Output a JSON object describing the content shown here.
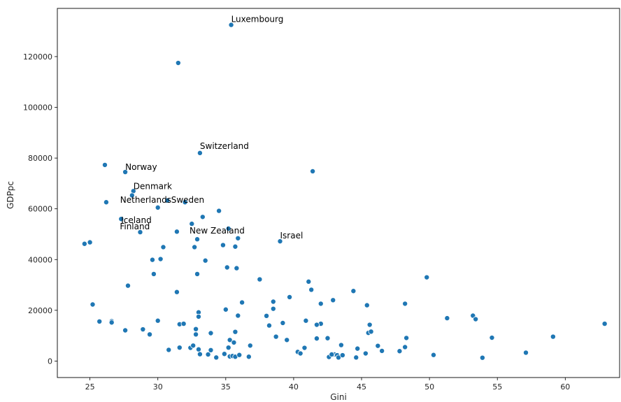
{
  "chart_data": {
    "type": "scatter",
    "title": "",
    "xlabel": "Gini",
    "ylabel": "GDPpc",
    "xlim": [
      22.6,
      64.0
    ],
    "ylim": [
      -6500,
      139000
    ],
    "xticks": [
      25,
      30,
      35,
      40,
      45,
      50,
      55,
      60
    ],
    "yticks": [
      0,
      20000,
      40000,
      60000,
      80000,
      100000,
      120000
    ],
    "grid": false,
    "legend": "none",
    "colors": {
      "points": "#1f77b4",
      "edge": "#ffffff",
      "axes": "#000000",
      "text": "#262626"
    },
    "annotations": [
      {
        "text": "Luxembourg",
        "x": 35.4,
        "y": 132500
      },
      {
        "text": "Switzerland",
        "x": 33.1,
        "y": 82000
      },
      {
        "text": "Norway",
        "x": 27.6,
        "y": 74500
      },
      {
        "text": "Denmark",
        "x": 28.2,
        "y": 67000
      },
      {
        "text": "Netherlands",
        "x": 28.1,
        "y": 62600
      },
      {
        "text": "Sweden",
        "x": 30.0,
        "y": 60500
      },
      {
        "text": "Iceland",
        "x": 27.3,
        "y": 56000
      },
      {
        "text": "Finland",
        "x": 27.2,
        "y": 56000
      },
      {
        "text": "New Zealand",
        "x": 32.9,
        "y": 48000
      },
      {
        "text": "Israel",
        "x": 39.0,
        "y": 47200
      }
    ],
    "points": [
      [
        35.4,
        132500
      ],
      [
        31.5,
        117500
      ],
      [
        33.1,
        82000
      ],
      [
        26.1,
        77300
      ],
      [
        27.6,
        74500
      ],
      [
        41.4,
        74800
      ],
      [
        28.2,
        67000
      ],
      [
        28.1,
        65300
      ],
      [
        26.2,
        62600
      ],
      [
        30.0,
        60500
      ],
      [
        30.7,
        63300
      ],
      [
        32.0,
        62600
      ],
      [
        34.5,
        59200
      ],
      [
        27.3,
        56000
      ],
      [
        33.3,
        56800
      ],
      [
        35.2,
        52200
      ],
      [
        32.5,
        54100
      ],
      [
        31.4,
        51000
      ],
      [
        28.7,
        50800
      ],
      [
        34.8,
        45700
      ],
      [
        35.9,
        48400
      ],
      [
        39.0,
        47200
      ],
      [
        32.9,
        48000
      ],
      [
        24.6,
        46200
      ],
      [
        25.0,
        46800
      ],
      [
        30.4,
        44900
      ],
      [
        32.7,
        44900
      ],
      [
        35.7,
        45100
      ],
      [
        29.6,
        39900
      ],
      [
        30.2,
        40200
      ],
      [
        33.5,
        39600
      ],
      [
        35.1,
        36900
      ],
      [
        35.8,
        36600
      ],
      [
        32.9,
        34300
      ],
      [
        29.7,
        34300
      ],
      [
        37.5,
        32200
      ],
      [
        41.1,
        31300
      ],
      [
        49.8,
        33000
      ],
      [
        27.8,
        29700
      ],
      [
        41.3,
        28100
      ],
      [
        44.4,
        27600
      ],
      [
        31.4,
        27200
      ],
      [
        39.7,
        25200
      ],
      [
        25.2,
        22300
      ],
      [
        42.9,
        24000
      ],
      [
        36.2,
        23100
      ],
      [
        38.5,
        23400
      ],
      [
        42.0,
        22600
      ],
      [
        45.4,
        22000
      ],
      [
        48.2,
        22600
      ],
      [
        38.5,
        20600
      ],
      [
        35.0,
        20300
      ],
      [
        33.0,
        19200
      ],
      [
        35.9,
        17900
      ],
      [
        33.0,
        17500
      ],
      [
        38.0,
        17800
      ],
      [
        51.3,
        16900
      ],
      [
        53.2,
        17900
      ],
      [
        53.4,
        16500
      ],
      [
        25.7,
        15600
      ],
      [
        26.6,
        15700
      ],
      [
        26.6,
        15200
      ],
      [
        30.0,
        15900
      ],
      [
        31.6,
        14500
      ],
      [
        31.9,
        14700
      ],
      [
        38.2,
        14000
      ],
      [
        39.2,
        15000
      ],
      [
        40.9,
        15900
      ],
      [
        42.0,
        14700
      ],
      [
        41.7,
        14300
      ],
      [
        45.6,
        14300
      ],
      [
        62.9,
        14700
      ],
      [
        27.6,
        12100
      ],
      [
        28.9,
        12500
      ],
      [
        32.8,
        12600
      ],
      [
        35.7,
        11500
      ],
      [
        33.9,
        11000
      ],
      [
        45.5,
        11100
      ],
      [
        45.7,
        11600
      ],
      [
        29.4,
        10500
      ],
      [
        32.8,
        10500
      ],
      [
        38.7,
        9600
      ],
      [
        39.5,
        8300
      ],
      [
        41.7,
        8900
      ],
      [
        42.5,
        9000
      ],
      [
        48.3,
        9100
      ],
      [
        54.6,
        9200
      ],
      [
        59.1,
        9600
      ],
      [
        35.3,
        8300
      ],
      [
        35.6,
        7300
      ],
      [
        36.8,
        6100
      ],
      [
        31.6,
        5300
      ],
      [
        32.4,
        5200
      ],
      [
        32.6,
        6100
      ],
      [
        35.2,
        5300
      ],
      [
        40.8,
        5200
      ],
      [
        43.5,
        6300
      ],
      [
        46.2,
        6000
      ],
      [
        48.2,
        5500
      ],
      [
        30.8,
        4400
      ],
      [
        33.0,
        4600
      ],
      [
        33.9,
        4300
      ],
      [
        40.3,
        3600
      ],
      [
        40.5,
        3000
      ],
      [
        43.0,
        2600
      ],
      [
        44.7,
        4900
      ],
      [
        45.3,
        3000
      ],
      [
        46.5,
        4000
      ],
      [
        47.8,
        3900
      ],
      [
        57.1,
        3300
      ],
      [
        33.1,
        2700
      ],
      [
        33.7,
        2600
      ],
      [
        34.3,
        1400
      ],
      [
        34.9,
        2800
      ],
      [
        35.3,
        1800
      ],
      [
        35.5,
        2000
      ],
      [
        35.7,
        1700
      ],
      [
        36.0,
        2400
      ],
      [
        36.7,
        1700
      ],
      [
        42.6,
        1600
      ],
      [
        42.8,
        2600
      ],
      [
        43.2,
        2300
      ],
      [
        43.3,
        1400
      ],
      [
        43.6,
        2300
      ],
      [
        44.6,
        1400
      ],
      [
        50.3,
        2400
      ],
      [
        53.9,
        1300
      ]
    ]
  }
}
